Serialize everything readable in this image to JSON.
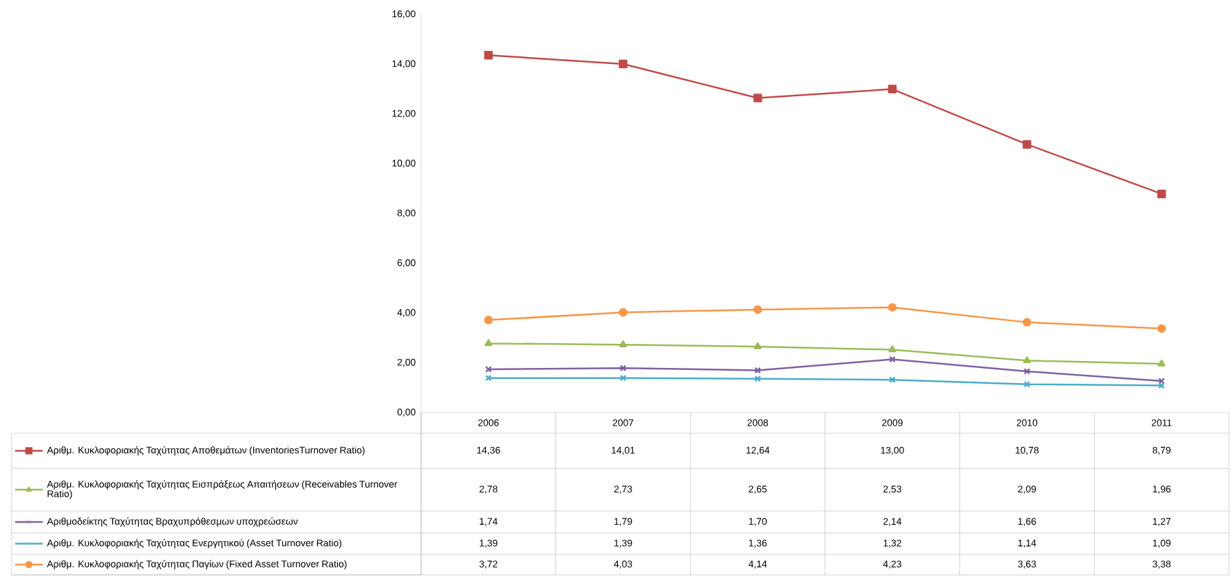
{
  "chart_data": {
    "type": "line",
    "categories": [
      "2006",
      "2007",
      "2008",
      "2009",
      "2010",
      "2011"
    ],
    "series": [
      {
        "name": "Αριθμ. Κυκλοφοριακής Ταχύτητας Αποθεμάτων (InventoriesTurnover Ratio)",
        "color": "#be4b48",
        "marker": "square",
        "values": [
          14.36,
          14.01,
          12.64,
          13.0,
          10.78,
          8.79
        ],
        "value_labels": [
          "14,36",
          "14,01",
          "12,64",
          "13,00",
          "10,78",
          "8,79"
        ]
      },
      {
        "name": "Αριθμ. Κυκλοφοριακής Ταχύτητας Εισπράξεως Απαιτήσεων (Receivables Turnover Ratio)",
        "color": "#9bbb59",
        "marker": "triangle",
        "values": [
          2.78,
          2.73,
          2.65,
          2.53,
          2.09,
          1.96
        ],
        "value_labels": [
          "2,78",
          "2,73",
          "2,65",
          "2,53",
          "2,09",
          "1,96"
        ]
      },
      {
        "name": "Αριθμοδείκτης Ταχύτητας Βραχυπρόθεσμων υποχρεώσεων",
        "color": "#7f60a1",
        "marker": "cross",
        "values": [
          1.74,
          1.79,
          1.7,
          2.14,
          1.66,
          1.27
        ],
        "value_labels": [
          "1,74",
          "1,79",
          "1,70",
          "2,14",
          "1,66",
          "1,27"
        ]
      },
      {
        "name": "Αριθμ. Κυκλοφοριακής Ταχύτητας Ενεργητικού (Asset Turnover Ratio)",
        "color": "#4bacc6",
        "marker": "cross",
        "values": [
          1.39,
          1.39,
          1.36,
          1.32,
          1.14,
          1.09
        ],
        "value_labels": [
          "1,39",
          "1,39",
          "1,36",
          "1,32",
          "1,14",
          "1,09"
        ]
      },
      {
        "name": "Αριθμ. Κυκλοφοριακής Ταχύτητας Παγίων (Fixed Asset Turnover Ratio)",
        "color": "#f79646",
        "marker": "circle",
        "values": [
          3.72,
          4.03,
          4.14,
          4.23,
          3.63,
          3.38
        ],
        "value_labels": [
          "3,72",
          "4,03",
          "4,14",
          "4,23",
          "3,63",
          "3,38"
        ]
      }
    ],
    "ylim": [
      0,
      16
    ],
    "yticks": [
      {
        "value": 0,
        "label": "0,00"
      },
      {
        "value": 2,
        "label": "2,00"
      },
      {
        "value": 4,
        "label": "4,00"
      },
      {
        "value": 6,
        "label": "6,00"
      },
      {
        "value": 8,
        "label": "8,00"
      },
      {
        "value": 10,
        "label": "10,00"
      },
      {
        "value": 12,
        "label": "12,00"
      },
      {
        "value": 14,
        "label": "14,00"
      },
      {
        "value": 16,
        "label": "16,00"
      }
    ],
    "line_style": "solid",
    "legend": "bottom"
  }
}
